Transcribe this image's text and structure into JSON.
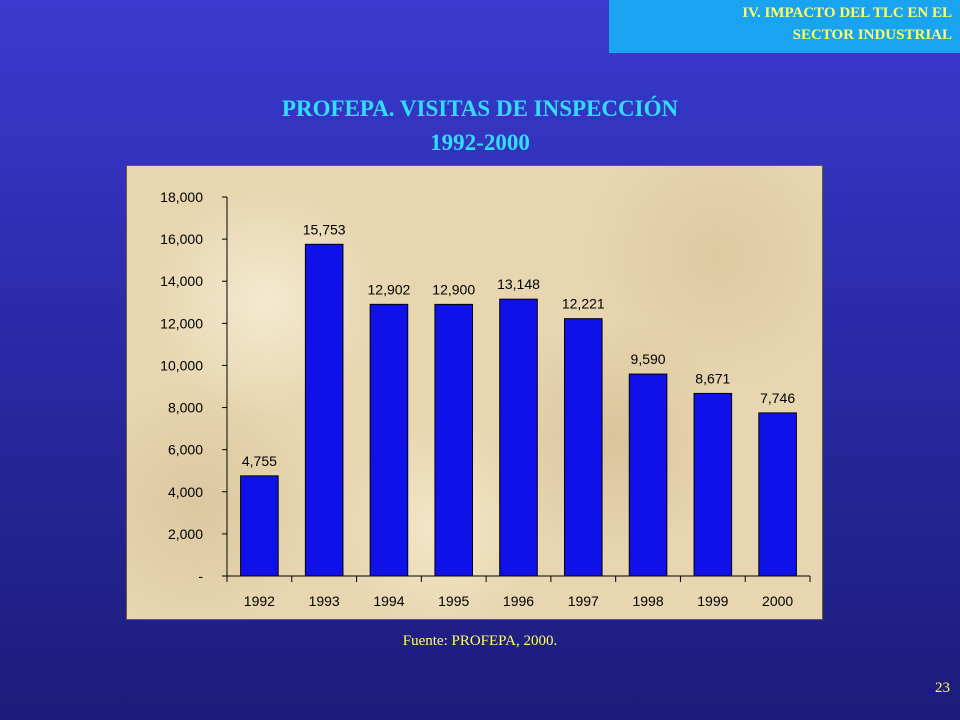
{
  "header": {
    "section_line1": "IV. IMPACTO DEL TLC EN EL",
    "section_line2": "SECTOR INDUSTRIAL"
  },
  "slide": {
    "title_line1": "PROFEPA. VISITAS DE INSPECCIÓN",
    "title_line2": "1992-2000",
    "source": "Fuente: PROFEPA,  2000.",
    "page_number": "23"
  },
  "colors": {
    "bar_fill": "#1010e8",
    "bar_stroke": "#000000",
    "title": "#33ddff",
    "text_accent": "#ffff66"
  },
  "chart_data": {
    "type": "bar",
    "title": "PROFEPA. VISITAS DE INSPECCIÓN 1992-2000",
    "categories": [
      "1992",
      "1993",
      "1994",
      "1995",
      "1996",
      "1997",
      "1998",
      "1999",
      "2000"
    ],
    "values": [
      4755,
      15753,
      12902,
      12900,
      13148,
      12221,
      9590,
      8671,
      7746
    ],
    "value_labels": [
      "4,755",
      "15,753",
      "12,902",
      "12,900",
      "13,148",
      "12,221",
      "9,590",
      "8,671",
      "7,746"
    ],
    "ylim": [
      0,
      18000
    ],
    "y_ticks": [
      0,
      2000,
      4000,
      6000,
      8000,
      10000,
      12000,
      14000,
      16000,
      18000
    ],
    "y_tick_labels": [
      "-",
      "2,000",
      "4,000",
      "6,000",
      "8,000",
      "10,000",
      "12,000",
      "14,000",
      "16,000",
      "18,000"
    ],
    "grid": false,
    "legend": "none",
    "xlabel": "",
    "ylabel": ""
  }
}
